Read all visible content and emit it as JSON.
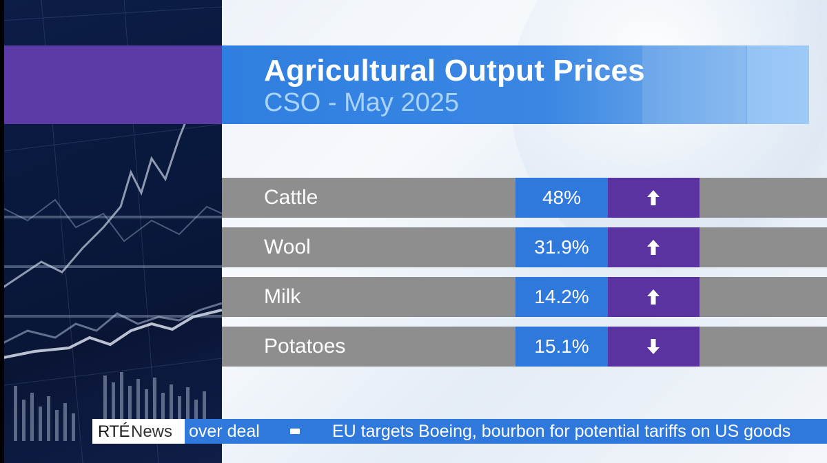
{
  "graphic": {
    "title": "Agricultural Output Prices",
    "subtitle": "CSO - May 2025"
  },
  "rows": [
    {
      "name": "Cattle",
      "value": "48%",
      "direction": "up",
      "icon": "arrow-up-icon"
    },
    {
      "name": "Wool",
      "value": "31.9%",
      "direction": "up",
      "icon": "arrow-up-icon"
    },
    {
      "name": "Milk",
      "value": "14.2%",
      "direction": "up",
      "icon": "arrow-up-icon"
    },
    {
      "name": "Potatoes",
      "value": "15.1%",
      "direction": "down",
      "icon": "arrow-down-icon"
    }
  ],
  "ticker": {
    "logo_brand": "RTÉ",
    "logo_word": "News",
    "headline_partial": "over deal",
    "headline": "EU targets Boeing, bourbon for potential tariffs on US goods"
  },
  "colors": {
    "title_blue": "#2f78dc",
    "accent_purple": "#5a33a1",
    "row_grey": "#8e8e8e",
    "subtitle_blue": "#a9d4ff"
  }
}
